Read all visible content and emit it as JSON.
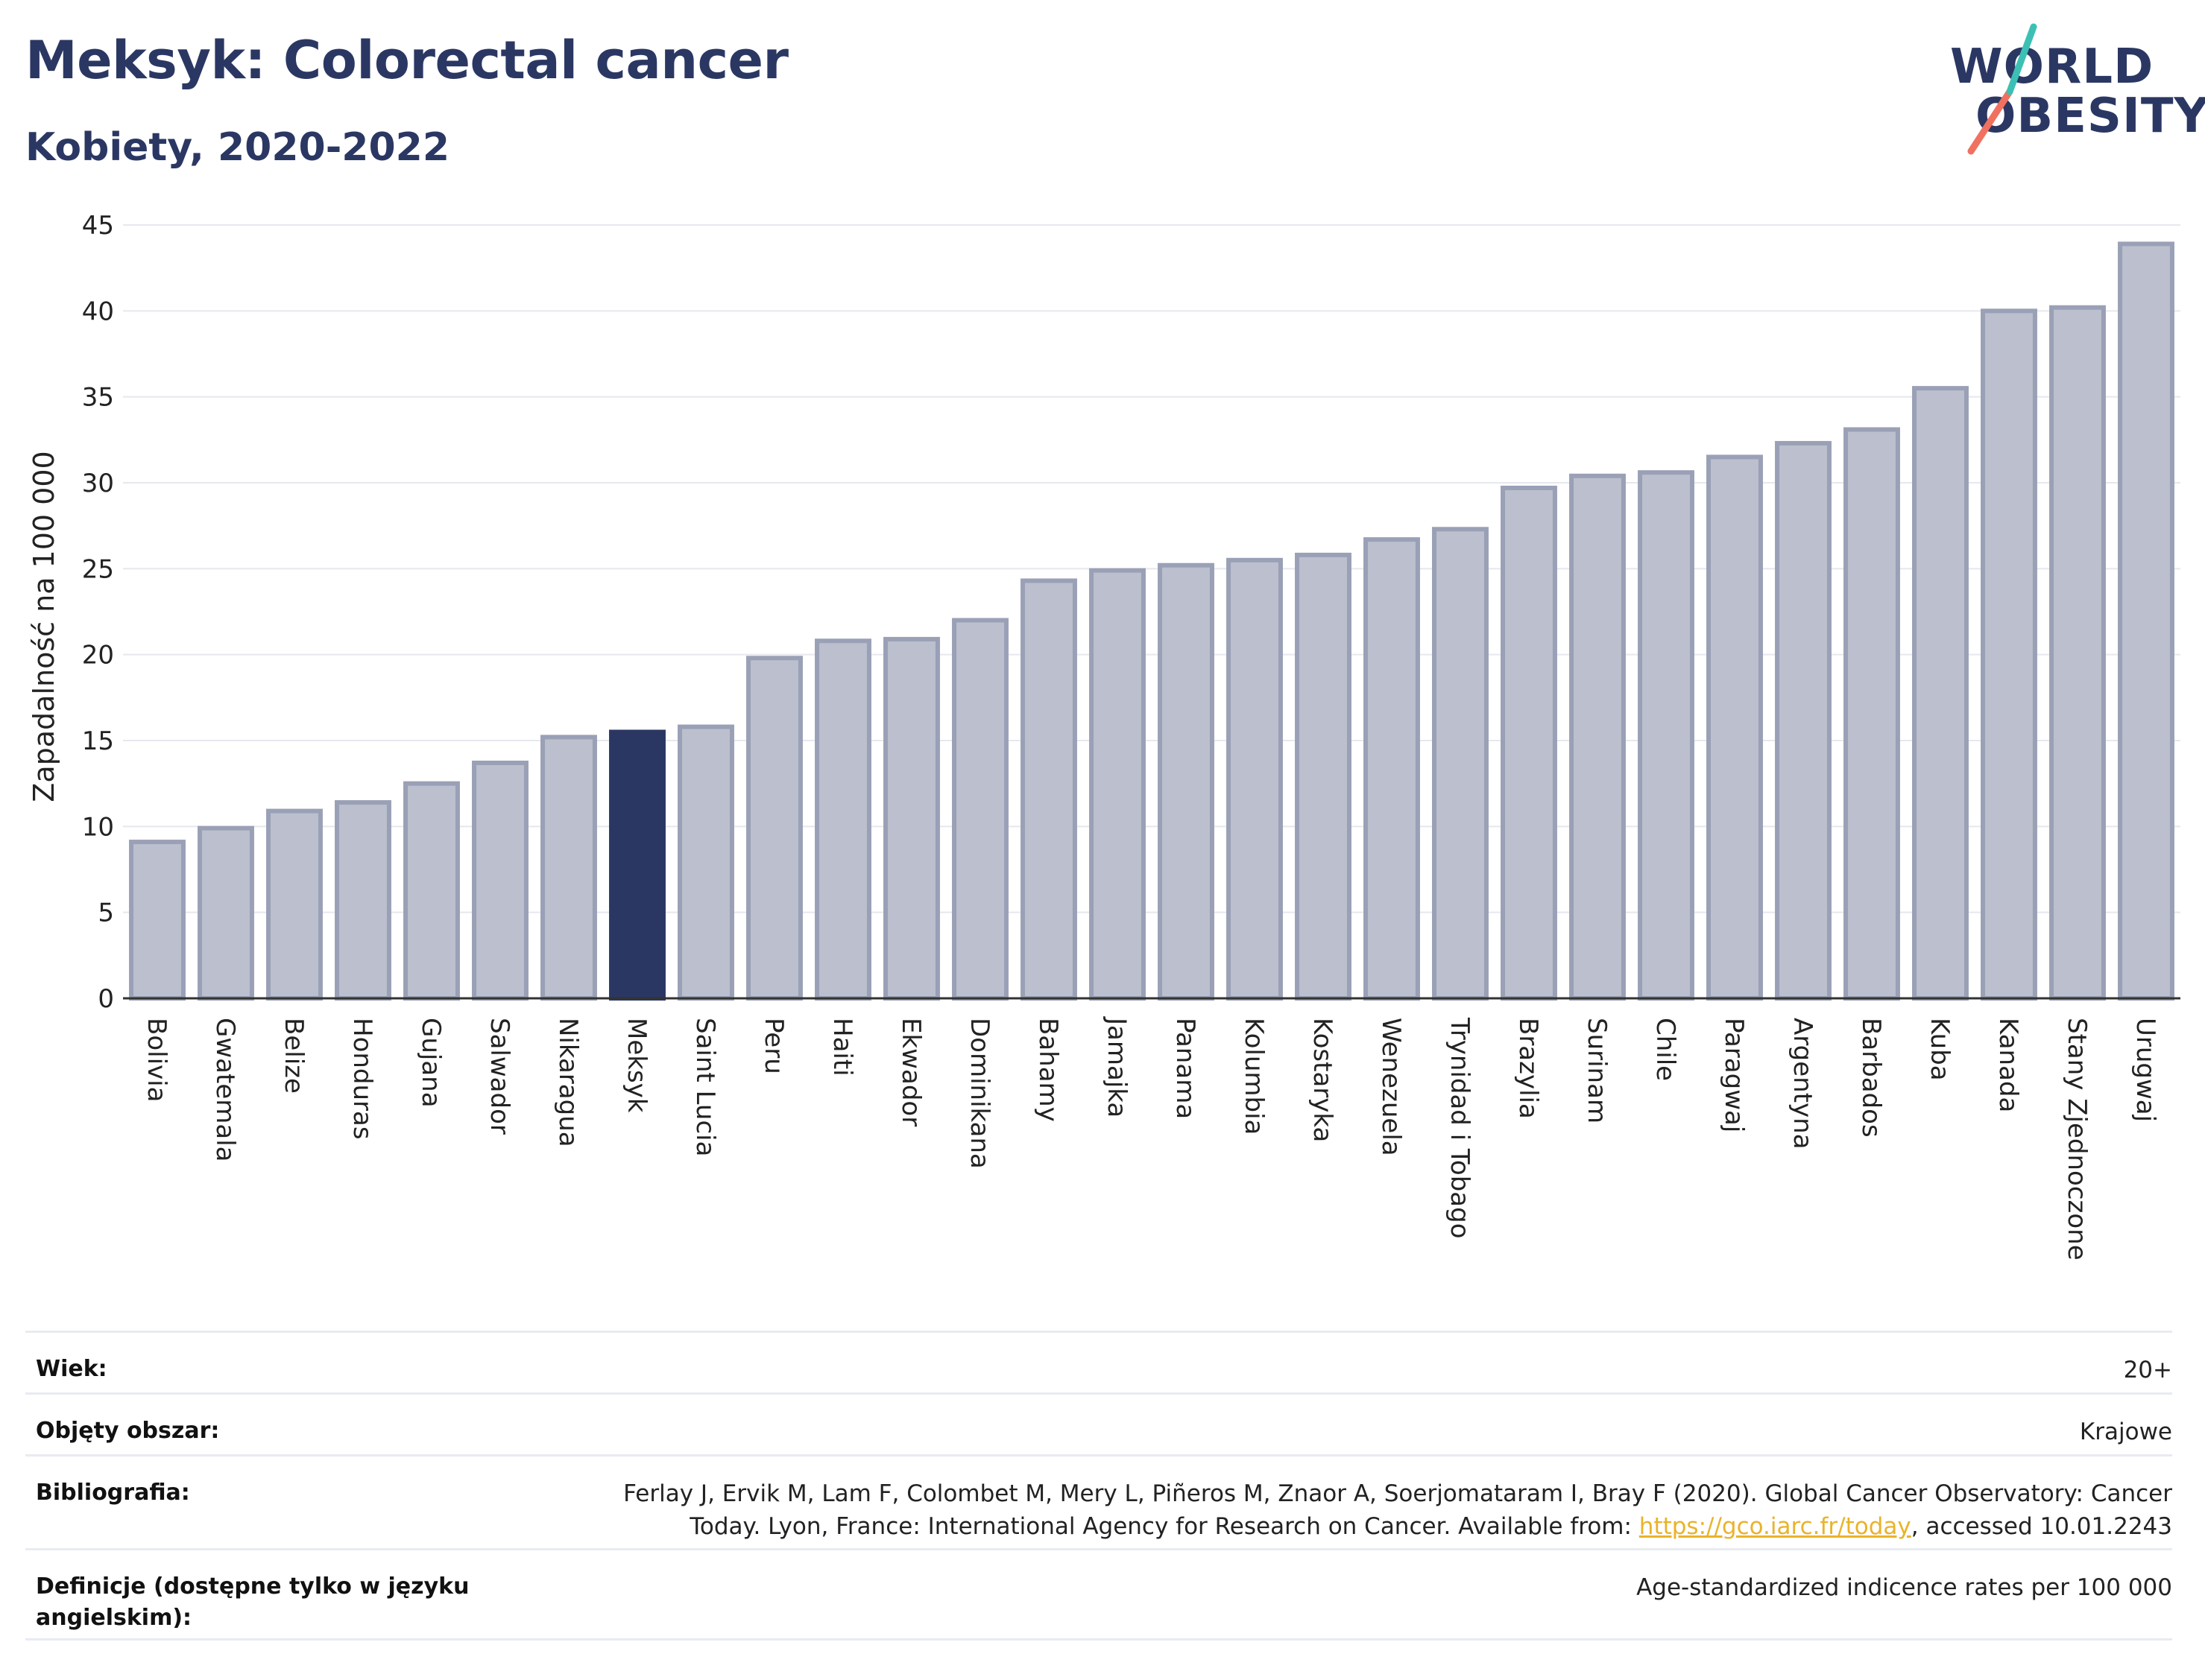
{
  "header": {
    "title": "Meksyk: Colorectal cancer",
    "subtitle": "Kobiety, 2020-2022"
  },
  "logo": {
    "line1": "WORLD",
    "line2": "OBESITY"
  },
  "colors": {
    "highlight": "#2b3763",
    "bar_fill": "#bcc0ce",
    "bar_stroke": "#9aa0b6",
    "grid": "#e6e8ee",
    "logo_teal": "#3cc0b4",
    "logo_coral": "#f07160"
  },
  "chart_data": {
    "type": "bar",
    "title": "Meksyk: Colorectal cancer",
    "subtitle": "Kobiety, 2020-2022",
    "ylabel": "Zapadalność na 100 000",
    "xlabel": "",
    "ylim": [
      0,
      45
    ],
    "yticks": [
      0,
      5,
      10,
      15,
      20,
      25,
      30,
      35,
      40,
      45
    ],
    "grid": true,
    "highlight": "Meksyk",
    "categories": [
      "Bolivia",
      "Gwatemala",
      "Belize",
      "Honduras",
      "Gujana",
      "Salwador",
      "Nikaragua",
      "Meksyk",
      "Saint Lucia",
      "Peru",
      "Haiti",
      "Ekwador",
      "Dominikana",
      "Bahamy",
      "Jamajka",
      "Panama",
      "Kolumbia",
      "Kostaryka",
      "Wenezuela",
      "Trynidad i Tobago",
      "Brazylia",
      "Surinam",
      "Chile",
      "Paragwaj",
      "Argentyna",
      "Barbados",
      "Kuba",
      "Kanada",
      "Stany Zjednoczone",
      "Urugwaj"
    ],
    "values": [
      9.1,
      9.9,
      10.9,
      11.4,
      12.5,
      13.7,
      15.2,
      15.5,
      15.8,
      19.8,
      20.8,
      20.9,
      22.0,
      24.3,
      24.9,
      25.2,
      25.5,
      25.8,
      26.7,
      27.3,
      29.7,
      30.4,
      30.6,
      31.5,
      32.3,
      33.1,
      35.5,
      40.0,
      40.2,
      43.9
    ]
  },
  "info": [
    {
      "label": "Wiek:",
      "value": "20+"
    },
    {
      "label": "Objęty obszar:",
      "value": "Krajowe"
    },
    {
      "label": "Bibliografia:",
      "value_line1": "Ferlay J, Ervik M, Lam F, Colombet M, Mery L, Piñeros M, Znaor A, Soerjomataram I, Bray F (2020). Global Cancer Observatory: Cancer",
      "value_line2_pre": "Today. Lyon, France: International Agency for Research on Cancer. Available from: ",
      "link": "https://gco.iarc.fr/today",
      "value_line2_post": ", accessed 10.01.2243"
    },
    {
      "label": "Definicje (dostępne tylko w języku angielskim):",
      "value": "Age-standardized indicence rates per 100 000"
    }
  ]
}
